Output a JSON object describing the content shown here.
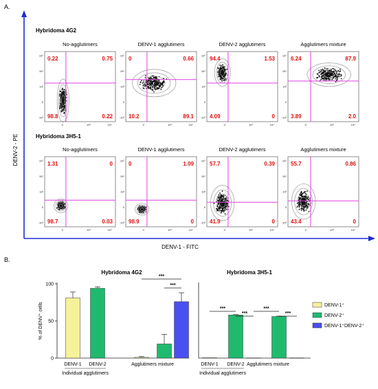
{
  "panel_a": {
    "letter": "A.",
    "x_axis_label": "DENV-1 - FITC",
    "y_axis_label": "DENV-2 - PE",
    "tick_labels_x": [
      "0",
      "10³",
      "10⁴"
    ],
    "tick_labels_y": [
      "10⁵",
      "10⁴",
      "10³",
      "0",
      "-10³"
    ],
    "colors": {
      "gate": "#e040e0",
      "quadrant_text": "#e01010",
      "axis_arrow": "#1a2fd6"
    },
    "groups": [
      {
        "title": "Hybridoma 4G2",
        "plots": [
          {
            "title": "No-agglutimers",
            "quadrants": {
              "ul": "0.22",
              "ur": "0.75",
              "ll": "98.8",
              "lr": "0.22"
            }
          },
          {
            "title": "DENV-1 agglutimers",
            "quadrants": {
              "ul": "0",
              "ur": "0.66",
              "ll": "10.2",
              "lr": "89.1"
            }
          },
          {
            "title": "DENV-2 agglutimers",
            "quadrants": {
              "ul": "94.4",
              "ur": "1.53",
              "ll": "4.09",
              "lr": "0"
            }
          },
          {
            "title": "Agglutimers mixture",
            "quadrants": {
              "ul": "6.24",
              "ur": "87.9",
              "ll": "3.89",
              "lr": "2.0"
            }
          }
        ]
      },
      {
        "title": "Hybridoma 3H5-1",
        "plots": [
          {
            "title": "No-agglutimers",
            "quadrants": {
              "ul": "1.31",
              "ur": "0",
              "ll": "98.7",
              "lr": "0.03"
            }
          },
          {
            "title": "DENV-1 agglutimers",
            "quadrants": {
              "ul": "0",
              "ur": "1.09",
              "ll": "98.9",
              "lr": "0"
            }
          },
          {
            "title": "DENV-2 agglutimers",
            "quadrants": {
              "ul": "57.7",
              "ur": "0.39",
              "ll": "41.9",
              "lr": "0"
            }
          },
          {
            "title": "Agglutimers mixture",
            "quadrants": {
              "ul": "55.7",
              "ur": "0.86",
              "ll": "43.4",
              "lr": "0"
            }
          }
        ]
      }
    ]
  },
  "panel_b": {
    "letter": "B."
  },
  "chart_data": [
    {
      "type": "bar",
      "title": "Hybridoma 4G2",
      "ylabel": "% of DENV⁺ cells",
      "ylim": [
        0,
        100
      ],
      "yticks": [
        "0",
        "50",
        "100"
      ],
      "categories": [
        "DENV-1",
        "DENV-2",
        "Agglutimers mixture"
      ],
      "group_label": "Individual agglutimers",
      "bars": [
        {
          "category": "DENV-1",
          "series": "DENV-1⁺",
          "value": 81,
          "error": 8
        },
        {
          "category": "DENV-2",
          "series": "DENV-2⁺",
          "value": 94,
          "error": 2
        },
        {
          "category": "Agglutimers mixture",
          "series": "DENV-1⁺",
          "value": 1,
          "error": 1
        },
        {
          "category": "Agglutimers mixture",
          "series": "DENV-2⁺",
          "value": 19,
          "error": 13
        },
        {
          "category": "Agglutimers mixture",
          "series": "DENV-1⁺DENV-2⁺",
          "value": 76,
          "error": 12
        }
      ],
      "significance": [
        "***",
        "***"
      ]
    },
    {
      "type": "bar",
      "title": "Hybridoma 3H5-1",
      "ylim": [
        0,
        100
      ],
      "categories": [
        "DENV-1",
        "DENV-2",
        "Agglutimers mixture"
      ],
      "group_label": "Individual agglutimers",
      "bars": [
        {
          "category": "DENV-1",
          "series": "DENV-1⁺",
          "value": 0.5,
          "error": 0
        },
        {
          "category": "DENV-2",
          "series": "DENV-2⁺",
          "value": 58,
          "error": 0.5
        },
        {
          "category": "Agglutimers mixture",
          "series": "DENV-1⁺",
          "value": 0.3,
          "error": 0
        },
        {
          "category": "Agglutimers mixture",
          "series": "DENV-2⁺",
          "value": 56,
          "error": 0.5
        },
        {
          "category": "Agglutimers mixture",
          "series": "DENV-1⁺DENV-2⁺",
          "value": 0.3,
          "error": 0
        }
      ],
      "significance": [
        "***",
        "***",
        "***",
        "***"
      ]
    }
  ],
  "legend": [
    {
      "label": "DENV-1⁺",
      "color": "#f6f29a"
    },
    {
      "label": "DENV-2⁺",
      "color": "#1fba6e"
    },
    {
      "label": "DENV-1⁺DENV-2⁺",
      "color": "#4a50f0"
    }
  ]
}
